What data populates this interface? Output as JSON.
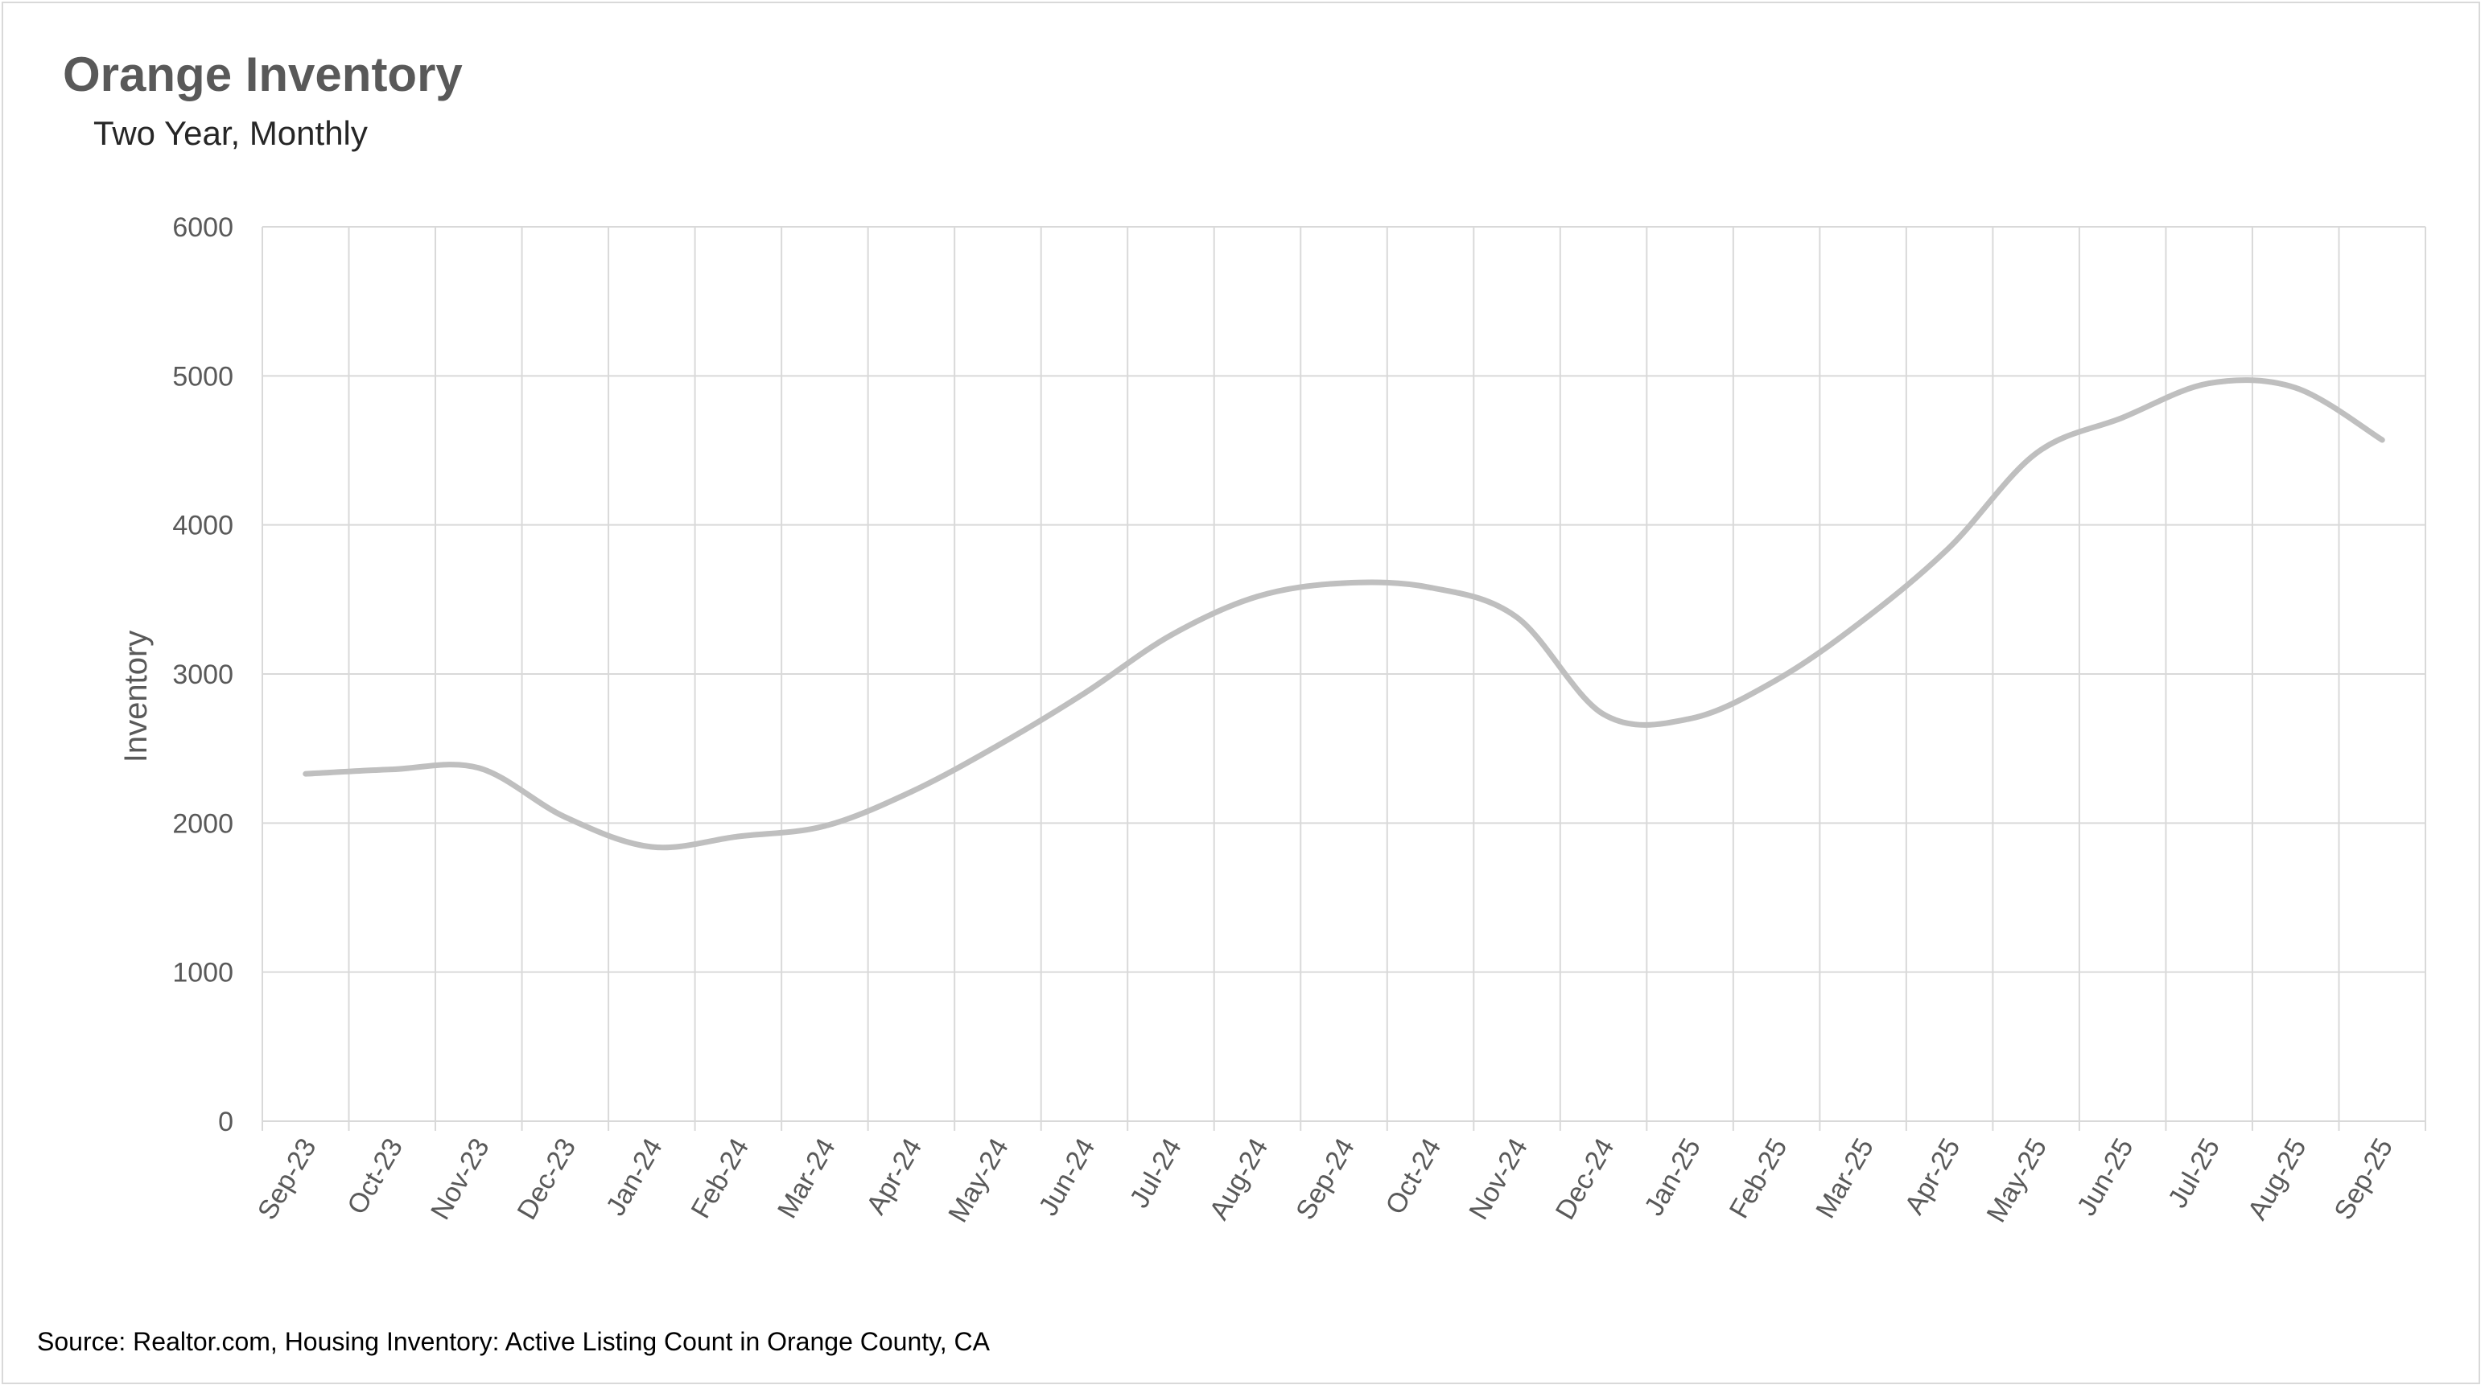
{
  "title": "Orange Inventory",
  "subtitle": "Two Year, Monthly",
  "source": "Source: Realtor.com, Housing Inventory: Active Listing Count in Orange County, CA",
  "colors": {
    "line": "#bfbfbf",
    "grid": "#d9d9d9",
    "text": "#595959"
  },
  "chart_data": {
    "type": "line",
    "ylabel": "Inventory",
    "ylim": [
      0,
      6000
    ],
    "yticks": [
      "0",
      "1000",
      "2000",
      "3000",
      "4000",
      "5000",
      "6000"
    ],
    "grid": true,
    "categories": [
      "Sep-23",
      "Oct-23",
      "Nov-23",
      "Dec-23",
      "Jan-24",
      "Feb-24",
      "Mar-24",
      "Apr-24",
      "May-24",
      "Jun-24",
      "Jul-24",
      "Aug-24",
      "Sep-24",
      "Oct-24",
      "Nov-24",
      "Dec-24",
      "Jan-25",
      "Feb-25",
      "Mar-25",
      "Apr-25",
      "May-25",
      "Jun-25",
      "Jul-25",
      "Aug-25",
      "Sep-25"
    ],
    "series": [
      {
        "values": [
          2330,
          2360,
          2370,
          2040,
          1840,
          1910,
          1980,
          2210,
          2520,
          2870,
          3260,
          3520,
          3610,
          3580,
          3380,
          2730,
          2700,
          2960,
          3360,
          3850,
          4480,
          4720,
          4950,
          4920,
          4570
        ]
      }
    ]
  }
}
